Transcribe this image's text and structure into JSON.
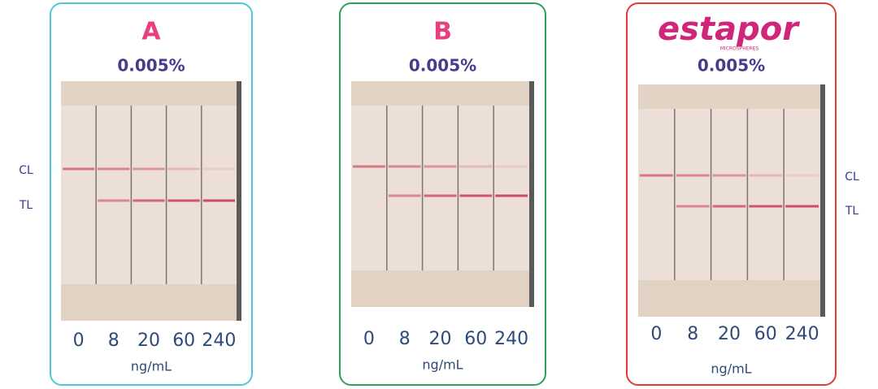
{
  "side_labels": {
    "control": "CL",
    "test": "TL"
  },
  "panels": [
    {
      "title": "A",
      "concentration": "0.005%",
      "lanes": [
        "0",
        "8",
        "20",
        "60",
        "240"
      ],
      "unit": "ng/mL"
    },
    {
      "title": "B",
      "concentration": "0.005%",
      "lanes": [
        "0",
        "8",
        "20",
        "60",
        "240"
      ],
      "unit": "ng/mL"
    },
    {
      "title": "estapor",
      "subtitle": "MICROSPHERES",
      "concentration": "0.005%",
      "lanes": [
        "0",
        "8",
        "20",
        "60",
        "240"
      ],
      "unit": "ng/mL"
    }
  ]
}
